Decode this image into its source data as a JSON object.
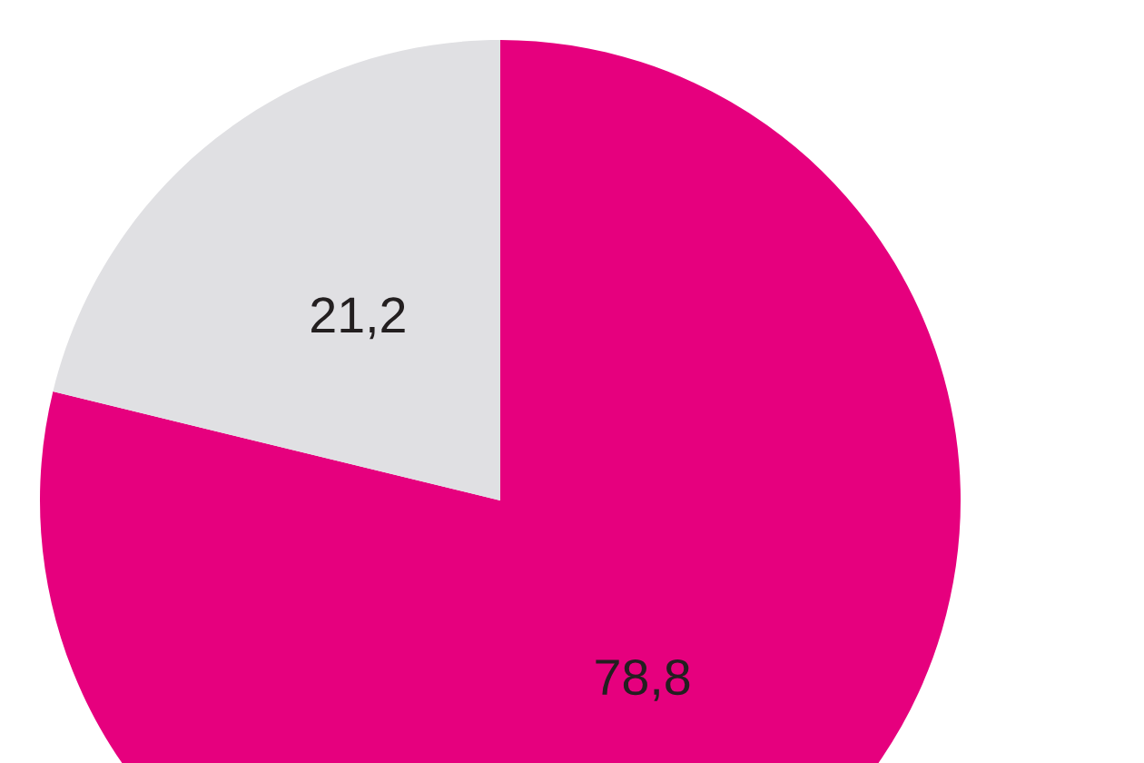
{
  "chart_data": {
    "type": "pie",
    "categories": [
      null,
      null
    ],
    "values": [
      78.8,
      21.2
    ],
    "colors": [
      "#e6007e",
      "#e0e0e3"
    ],
    "value_labels": [
      "78,8",
      "21,2"
    ]
  }
}
